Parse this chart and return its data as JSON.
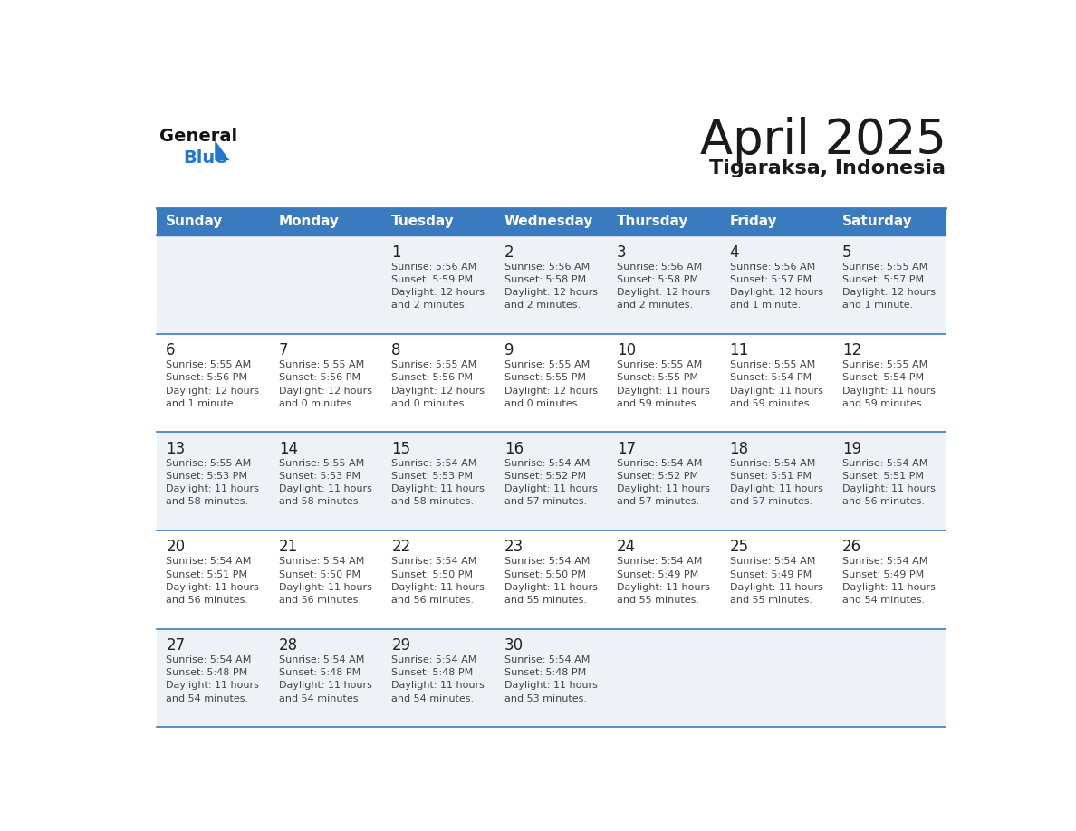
{
  "title": "April 2025",
  "subtitle": "Tigaraksa, Indonesia",
  "header_bg": "#3a7bbf",
  "header_text_color": "#ffffff",
  "weekdays": [
    "Sunday",
    "Monday",
    "Tuesday",
    "Wednesday",
    "Thursday",
    "Friday",
    "Saturday"
  ],
  "row_bg_even": "#eef2f7",
  "row_bg_odd": "#ffffff",
  "grid_line_color": "#3a7bbf",
  "day_number_color": "#222222",
  "info_text_color": "#444444",
  "title_color": "#1a1a1a",
  "subtitle_color": "#1a1a1a",
  "logo_general_color": "#111111",
  "logo_blue_color": "#2277cc",
  "calendar": [
    [
      {
        "day": null,
        "info": ""
      },
      {
        "day": null,
        "info": ""
      },
      {
        "day": 1,
        "info": "Sunrise: 5:56 AM\nSunset: 5:59 PM\nDaylight: 12 hours\nand 2 minutes."
      },
      {
        "day": 2,
        "info": "Sunrise: 5:56 AM\nSunset: 5:58 PM\nDaylight: 12 hours\nand 2 minutes."
      },
      {
        "day": 3,
        "info": "Sunrise: 5:56 AM\nSunset: 5:58 PM\nDaylight: 12 hours\nand 2 minutes."
      },
      {
        "day": 4,
        "info": "Sunrise: 5:56 AM\nSunset: 5:57 PM\nDaylight: 12 hours\nand 1 minute."
      },
      {
        "day": 5,
        "info": "Sunrise: 5:55 AM\nSunset: 5:57 PM\nDaylight: 12 hours\nand 1 minute."
      }
    ],
    [
      {
        "day": 6,
        "info": "Sunrise: 5:55 AM\nSunset: 5:56 PM\nDaylight: 12 hours\nand 1 minute."
      },
      {
        "day": 7,
        "info": "Sunrise: 5:55 AM\nSunset: 5:56 PM\nDaylight: 12 hours\nand 0 minutes."
      },
      {
        "day": 8,
        "info": "Sunrise: 5:55 AM\nSunset: 5:56 PM\nDaylight: 12 hours\nand 0 minutes."
      },
      {
        "day": 9,
        "info": "Sunrise: 5:55 AM\nSunset: 5:55 PM\nDaylight: 12 hours\nand 0 minutes."
      },
      {
        "day": 10,
        "info": "Sunrise: 5:55 AM\nSunset: 5:55 PM\nDaylight: 11 hours\nand 59 minutes."
      },
      {
        "day": 11,
        "info": "Sunrise: 5:55 AM\nSunset: 5:54 PM\nDaylight: 11 hours\nand 59 minutes."
      },
      {
        "day": 12,
        "info": "Sunrise: 5:55 AM\nSunset: 5:54 PM\nDaylight: 11 hours\nand 59 minutes."
      }
    ],
    [
      {
        "day": 13,
        "info": "Sunrise: 5:55 AM\nSunset: 5:53 PM\nDaylight: 11 hours\nand 58 minutes."
      },
      {
        "day": 14,
        "info": "Sunrise: 5:55 AM\nSunset: 5:53 PM\nDaylight: 11 hours\nand 58 minutes."
      },
      {
        "day": 15,
        "info": "Sunrise: 5:54 AM\nSunset: 5:53 PM\nDaylight: 11 hours\nand 58 minutes."
      },
      {
        "day": 16,
        "info": "Sunrise: 5:54 AM\nSunset: 5:52 PM\nDaylight: 11 hours\nand 57 minutes."
      },
      {
        "day": 17,
        "info": "Sunrise: 5:54 AM\nSunset: 5:52 PM\nDaylight: 11 hours\nand 57 minutes."
      },
      {
        "day": 18,
        "info": "Sunrise: 5:54 AM\nSunset: 5:51 PM\nDaylight: 11 hours\nand 57 minutes."
      },
      {
        "day": 19,
        "info": "Sunrise: 5:54 AM\nSunset: 5:51 PM\nDaylight: 11 hours\nand 56 minutes."
      }
    ],
    [
      {
        "day": 20,
        "info": "Sunrise: 5:54 AM\nSunset: 5:51 PM\nDaylight: 11 hours\nand 56 minutes."
      },
      {
        "day": 21,
        "info": "Sunrise: 5:54 AM\nSunset: 5:50 PM\nDaylight: 11 hours\nand 56 minutes."
      },
      {
        "day": 22,
        "info": "Sunrise: 5:54 AM\nSunset: 5:50 PM\nDaylight: 11 hours\nand 56 minutes."
      },
      {
        "day": 23,
        "info": "Sunrise: 5:54 AM\nSunset: 5:50 PM\nDaylight: 11 hours\nand 55 minutes."
      },
      {
        "day": 24,
        "info": "Sunrise: 5:54 AM\nSunset: 5:49 PM\nDaylight: 11 hours\nand 55 minutes."
      },
      {
        "day": 25,
        "info": "Sunrise: 5:54 AM\nSunset: 5:49 PM\nDaylight: 11 hours\nand 55 minutes."
      },
      {
        "day": 26,
        "info": "Sunrise: 5:54 AM\nSunset: 5:49 PM\nDaylight: 11 hours\nand 54 minutes."
      }
    ],
    [
      {
        "day": 27,
        "info": "Sunrise: 5:54 AM\nSunset: 5:48 PM\nDaylight: 11 hours\nand 54 minutes."
      },
      {
        "day": 28,
        "info": "Sunrise: 5:54 AM\nSunset: 5:48 PM\nDaylight: 11 hours\nand 54 minutes."
      },
      {
        "day": 29,
        "info": "Sunrise: 5:54 AM\nSunset: 5:48 PM\nDaylight: 11 hours\nand 54 minutes."
      },
      {
        "day": 30,
        "info": "Sunrise: 5:54 AM\nSunset: 5:48 PM\nDaylight: 11 hours\nand 53 minutes."
      },
      {
        "day": null,
        "info": ""
      },
      {
        "day": null,
        "info": ""
      },
      {
        "day": null,
        "info": ""
      }
    ]
  ]
}
